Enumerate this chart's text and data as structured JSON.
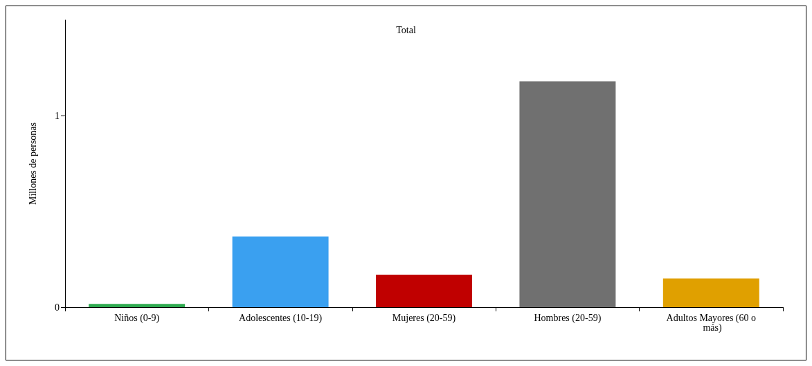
{
  "chart_data": {
    "type": "bar",
    "title": "Total",
    "ylabel": "Millones de personas",
    "categories": [
      "Niños (0-9)",
      "Adolescentes (10-19)",
      "Mujeres (20-59)",
      "Hombres (20-59)",
      "Adultos Mayores (60 o más)"
    ],
    "values": [
      0.017,
      0.37,
      0.17,
      1.18,
      0.15
    ],
    "colors": [
      "#2eaa50",
      "#3aa0f0",
      "#c00000",
      "#707070",
      "#e0a000"
    ],
    "ylim": [
      0,
      1.5
    ],
    "yticks": [
      0,
      1
    ],
    "grid": false
  }
}
